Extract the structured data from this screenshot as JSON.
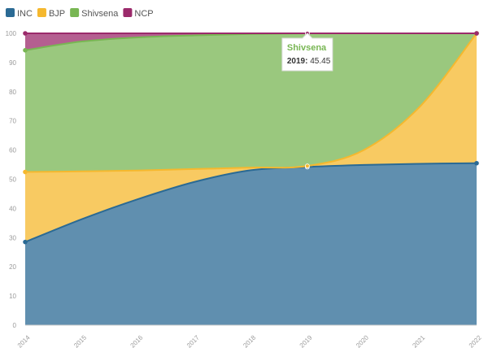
{
  "chart_data": {
    "type": "area",
    "stacked": true,
    "x": [
      2014,
      2015,
      2016,
      2017,
      2018,
      2019,
      2020,
      2021,
      2022
    ],
    "x_tick_labels": [
      "2014",
      "2015",
      "2016",
      "2017",
      "2018",
      "2019",
      "2020",
      "2021",
      "2022"
    ],
    "ylim": [
      0,
      100
    ],
    "y_ticks": [
      "0",
      "10",
      "20",
      "30",
      "40",
      "50",
      "60",
      "70",
      "80",
      "90",
      "100"
    ],
    "grid": false,
    "legend_position": "top-left",
    "series": [
      {
        "name": "INC",
        "color": "#2b6a94",
        "values": [
          28.5,
          36.3,
          43.2,
          49.1,
          53.1,
          54.2,
          54.9,
          55.3,
          55.5
        ]
      },
      {
        "name": "BJP",
        "color": "#f5b82e",
        "values": [
          24.0,
          16.4,
          9.8,
          4.4,
          0.9,
          0.35,
          5.1,
          19.7,
          44.5
        ]
      },
      {
        "name": "Shivsena",
        "color": "#78b653",
        "values": [
          41.7,
          44.5,
          45.6,
          45.8,
          45.8,
          45.45,
          40.0,
          25.0,
          0.0
        ]
      },
      {
        "name": "NCP",
        "color": "#9b2a6b",
        "values": [
          5.8,
          2.8,
          1.4,
          0.7,
          0.2,
          0.0,
          0.0,
          0.0,
          0.0
        ]
      }
    ],
    "tooltip": {
      "series": "Shivsena",
      "x_label": "2019:",
      "value": "45.45"
    }
  }
}
